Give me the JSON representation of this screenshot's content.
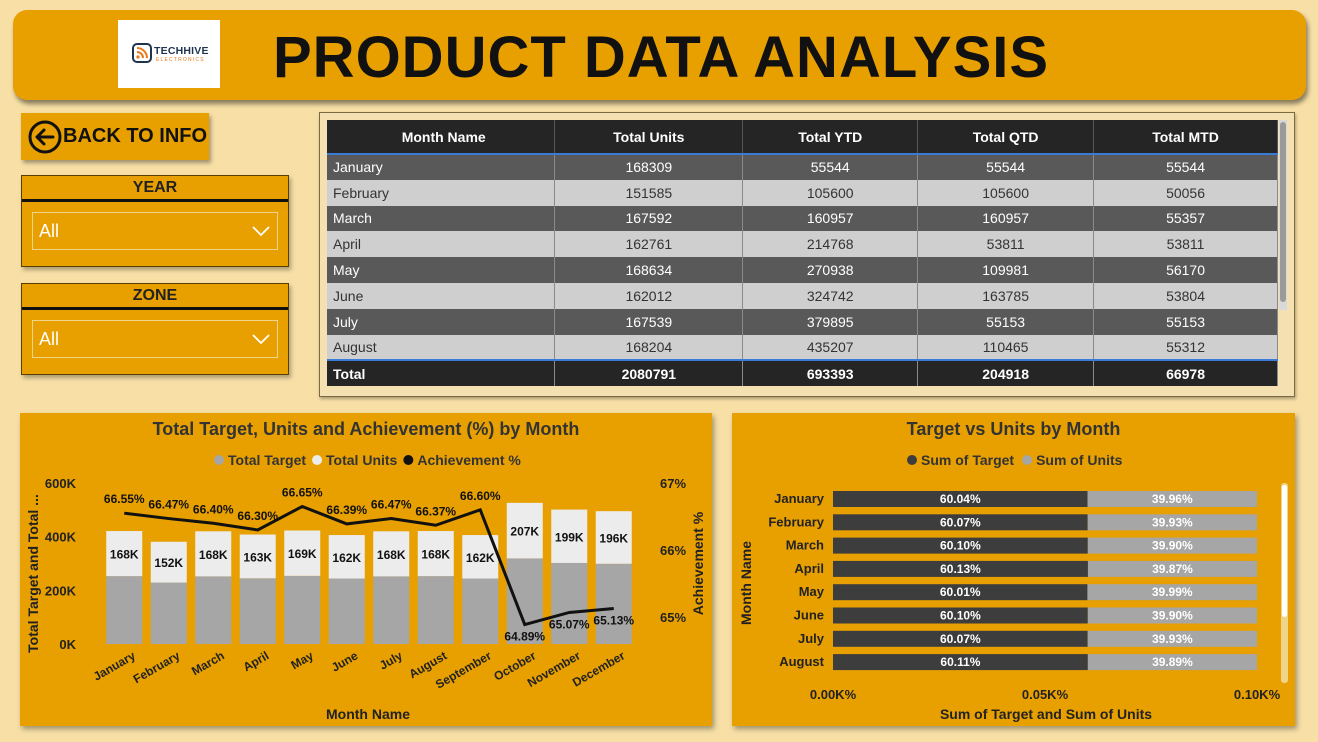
{
  "header": {
    "title": "PRODUCT DATA ANALYSIS",
    "logo_title": "TECHHIVE",
    "logo_subtitle": "ELECTRONICS"
  },
  "back_button": {
    "label": "BACK TO INFO",
    "icon": "arrow-left-circle-icon"
  },
  "slicers": [
    {
      "title": "YEAR",
      "value": "All"
    },
    {
      "title": "ZONE",
      "value": "All"
    }
  ],
  "table": {
    "columns": [
      "Month Name",
      "Total Units",
      "Total YTD",
      "Total QTD",
      "Total MTD"
    ],
    "rows": [
      [
        "January",
        "168309",
        "55544",
        "55544",
        "55544"
      ],
      [
        "February",
        "151585",
        "105600",
        "105600",
        "50056"
      ],
      [
        "March",
        "167592",
        "160957",
        "160957",
        "55357"
      ],
      [
        "April",
        "162761",
        "214768",
        "53811",
        "53811"
      ],
      [
        "May",
        "168634",
        "270938",
        "109981",
        "56170"
      ],
      [
        "June",
        "162012",
        "324742",
        "163785",
        "53804"
      ],
      [
        "July",
        "167539",
        "379895",
        "55153",
        "55153"
      ],
      [
        "August",
        "168204",
        "435207",
        "110465",
        "55312"
      ]
    ],
    "total": [
      "Total",
      "2080791",
      "693393",
      "204918",
      "66978"
    ]
  },
  "chart_data": [
    {
      "type": "bar",
      "title": "Total Target, Units and Achievement (%) by Month",
      "xlabel": "Month Name",
      "ylabel": "Total Target and Total ...",
      "y2label": "Achievement %",
      "legend": [
        "Total Target",
        "Total Units",
        "Achievement %"
      ],
      "legend_position": "top",
      "categories": [
        "January",
        "February",
        "March",
        "April",
        "May",
        "June",
        "July",
        "August",
        "September",
        "October",
        "November",
        "December"
      ],
      "ylim": [
        0,
        600000
      ],
      "yticks": [
        "0K",
        "200K",
        "400K",
        "600K"
      ],
      "y2lim": [
        64.6,
        67.0
      ],
      "y2ticks": [
        "65%",
        "66%",
        "67%"
      ],
      "series": [
        {
          "name": "Total Target",
          "values": [
            253000,
            229000,
            252000,
            245000,
            254000,
            244000,
            252000,
            253000,
            244000,
            319000,
            302000,
            299000
          ],
          "color": "#a6a6a6"
        },
        {
          "name": "Total Units",
          "values": [
            168000,
            152000,
            168000,
            163000,
            169000,
            162000,
            168000,
            168000,
            162000,
            207000,
            199000,
            196000
          ],
          "labels": [
            "168K",
            "152K",
            "168K",
            "163K",
            "169K",
            "162K",
            "168K",
            "168K",
            "162K",
            "207K",
            "199K",
            "196K"
          ],
          "color": "#ececec"
        },
        {
          "name": "Achievement %",
          "values": [
            66.55,
            66.47,
            66.4,
            66.3,
            66.65,
            66.39,
            66.47,
            66.37,
            66.6,
            64.89,
            65.07,
            65.13
          ],
          "labels": [
            "66.55%",
            "66.47%",
            "66.40%",
            "66.30%",
            "66.65%",
            "66.39%",
            "66.47%",
            "66.37%",
            "66.60%",
            "64.89%",
            "65.07%",
            "65.13%"
          ],
          "color": "#111111"
        }
      ]
    },
    {
      "type": "bar",
      "orientation": "horizontal",
      "stacked": "100%",
      "title": "Target vs Units by Month",
      "xlabel": "Sum of Target and Sum of Units",
      "ylabel": "Month Name",
      "legend": [
        "Sum of Target",
        "Sum of Units"
      ],
      "legend_position": "top",
      "xticks": [
        "0.00K%",
        "0.05K%",
        "0.10K%"
      ],
      "categories": [
        "January",
        "February",
        "March",
        "April",
        "May",
        "June",
        "July",
        "August"
      ],
      "series": [
        {
          "name": "Sum of Target",
          "values": [
            60.04,
            60.07,
            60.1,
            60.13,
            60.01,
            60.1,
            60.07,
            60.11
          ],
          "labels": [
            "60.04%",
            "60.07%",
            "60.10%",
            "60.13%",
            "60.01%",
            "60.10%",
            "60.07%",
            "60.11%"
          ],
          "color": "#3d3d3d"
        },
        {
          "name": "Sum of Units",
          "values": [
            39.96,
            39.93,
            39.9,
            39.87,
            39.99,
            39.9,
            39.93,
            39.89
          ],
          "labels": [
            "39.96%",
            "39.93%",
            "39.90%",
            "39.87%",
            "39.99%",
            "39.90%",
            "39.93%",
            "39.89%"
          ],
          "color": "#a6a6a6"
        }
      ]
    }
  ],
  "colors": {
    "page_bg": "#f7dfa6",
    "accent": "#e8a000",
    "table_header": "#252525"
  }
}
